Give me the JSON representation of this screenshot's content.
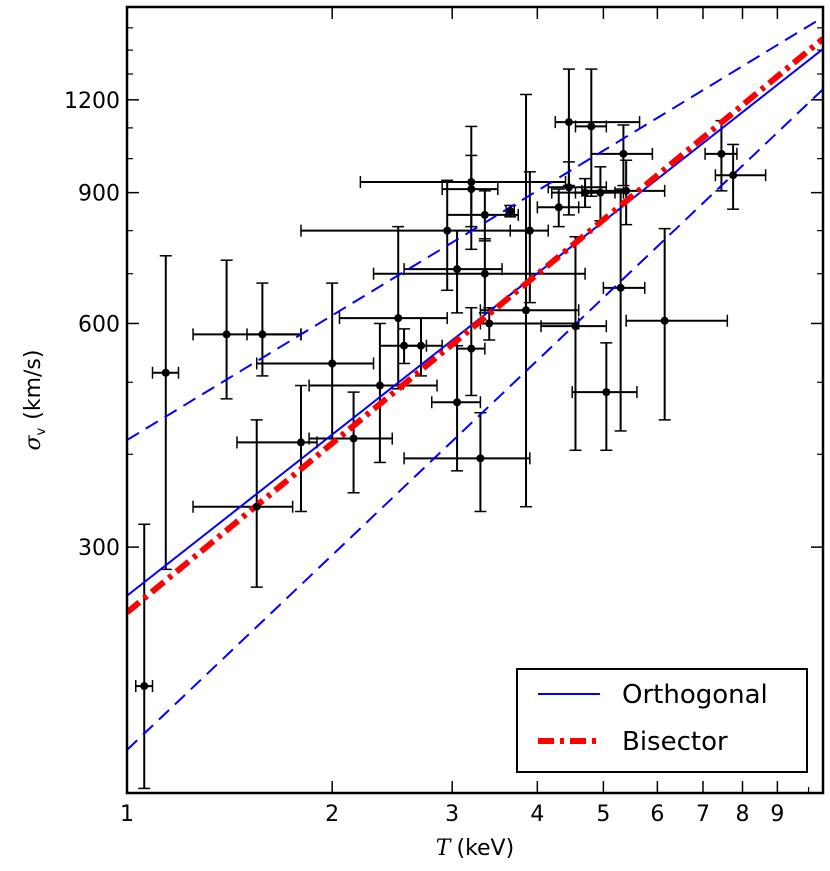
{
  "chart_data": {
    "type": "scatter",
    "title": "",
    "xlabel": {
      "symbol": "T",
      "unit": "(keV)"
    },
    "ylabel": {
      "symbol": "σ",
      "subscript": "v",
      "unit": "(km/s)"
    },
    "x_scale": "log",
    "y_scale": "log",
    "xlim": [
      1,
      10.5
    ],
    "ylim": [
      140,
      1600
    ],
    "x_ticks": [
      1,
      2,
      3,
      4,
      5,
      6,
      7,
      8,
      9
    ],
    "x_tick_labels": [
      "1",
      "2",
      "3",
      "4",
      "5",
      "6",
      "7",
      "8",
      "9"
    ],
    "y_ticks": [
      300,
      600,
      900,
      1200
    ],
    "y_tick_labels": [
      "300",
      "600",
      "900",
      "1200"
    ],
    "y_minor_ticks": [
      400,
      500,
      700,
      800,
      1000,
      1100,
      1300,
      1400,
      1500
    ],
    "points": [
      {
        "x": 1.06,
        "y": 195,
        "xerr": [
          0.03,
          0.03
        ],
        "yerr": [
          53,
          127
        ]
      },
      {
        "x": 1.14,
        "y": 515,
        "xerr": [
          0.05,
          0.05
        ],
        "yerr": [
          235,
          225
        ]
      },
      {
        "x": 1.4,
        "y": 580,
        "xerr": [
          0.15,
          0.4
        ],
        "yerr": [
          105,
          150
        ]
      },
      {
        "x": 1.58,
        "y": 580,
        "xerr": [
          0.08,
          0.22
        ],
        "yerr": [
          70,
          100
        ]
      },
      {
        "x": 1.55,
        "y": 340,
        "xerr": [
          0.3,
          0.2
        ],
        "yerr": [
          75,
          105
        ]
      },
      {
        "x": 1.8,
        "y": 415,
        "xerr": [
          0.35,
          0.1
        ],
        "yerr": [
          80,
          80
        ]
      },
      {
        "x": 2.0,
        "y": 530,
        "xerr": [
          0.45,
          0.3
        ],
        "yerr": [
          110,
          150
        ]
      },
      {
        "x": 2.15,
        "y": 420,
        "xerr": [
          0.3,
          0.3
        ],
        "yerr": [
          65,
          65
        ]
      },
      {
        "x": 2.35,
        "y": 495,
        "xerr": [
          0.5,
          0.5
        ],
        "yerr": [
          105,
          105
        ]
      },
      {
        "x": 2.5,
        "y": 610,
        "xerr": [
          0.45,
          0.45
        ],
        "yerr": [
          120,
          200
        ]
      },
      {
        "x": 2.55,
        "y": 560,
        "xerr": [
          0.2,
          0.2
        ],
        "yerr": [
          30,
          30
        ]
      },
      {
        "x": 2.7,
        "y": 560,
        "xerr": [
          0.15,
          0.2
        ],
        "yerr": [
          50,
          50
        ]
      },
      {
        "x": 2.95,
        "y": 800,
        "xerr": [
          1.15,
          0.95
        ],
        "yerr": [
          135,
          135
        ]
      },
      {
        "x": 3.05,
        "y": 470,
        "xerr": [
          0.25,
          0.25
        ],
        "yerr": [
          90,
          90
        ]
      },
      {
        "x": 3.05,
        "y": 710,
        "xerr": [
          0.5,
          0.5
        ],
        "yerr": [
          90,
          90
        ]
      },
      {
        "x": 3.2,
        "y": 930,
        "xerr": [
          1.0,
          1.2
        ],
        "yerr": [
          175,
          175
        ]
      },
      {
        "x": 3.2,
        "y": 910,
        "xerr": [
          0.3,
          0.3
        ],
        "yerr": [
          100,
          100
        ]
      },
      {
        "x": 3.2,
        "y": 555,
        "xerr": [
          0.15,
          0.15
        ],
        "yerr": [
          75,
          75
        ]
      },
      {
        "x": 3.3,
        "y": 395,
        "xerr": [
          0.75,
          0.6
        ],
        "yerr": [
          60,
          60
        ]
      },
      {
        "x": 3.35,
        "y": 840,
        "xerr": [
          0.4,
          0.4
        ],
        "yerr": [
          65,
          65
        ]
      },
      {
        "x": 3.35,
        "y": 700,
        "xerr": [
          1.05,
          1.35
        ],
        "yerr": [
          80,
          80
        ]
      },
      {
        "x": 3.4,
        "y": 600,
        "xerr": [
          0.1,
          1.2
        ],
        "yerr": [
          30,
          30
        ]
      },
      {
        "x": 3.65,
        "y": 850,
        "xerr": [
          0.05,
          0.05
        ],
        "yerr": [
          15,
          15
        ]
      },
      {
        "x": 3.85,
        "y": 625,
        "xerr": [
          0.55,
          0.75
        ],
        "yerr": [
          285,
          595
        ]
      },
      {
        "x": 3.9,
        "y": 800,
        "xerr": [
          0.25,
          0.25
        ],
        "yerr": [
          160,
          160
        ]
      },
      {
        "x": 4.3,
        "y": 860,
        "xerr": [
          0.3,
          0.3
        ],
        "yerr": [
          50,
          50
        ]
      },
      {
        "x": 4.45,
        "y": 1120,
        "xerr": [
          0.2,
          1.2
        ],
        "yerr": [
          200,
          200
        ]
      },
      {
        "x": 4.45,
        "y": 915,
        "xerr": [
          0.3,
          0.6
        ],
        "yerr": [
          75,
          75
        ]
      },
      {
        "x": 4.55,
        "y": 595,
        "xerr": [
          0.5,
          0.5
        ],
        "yerr": [
          190,
          190
        ]
      },
      {
        "x": 4.7,
        "y": 900,
        "xerr": [
          0.5,
          0.5
        ],
        "yerr": [
          40,
          40
        ]
      },
      {
        "x": 4.8,
        "y": 1105,
        "xerr": [
          0.25,
          0.25
        ],
        "yerr": [
          215,
          215
        ]
      },
      {
        "x": 4.95,
        "y": 900,
        "xerr": [
          0.4,
          0.4
        ],
        "yerr": [
          75,
          75
        ]
      },
      {
        "x": 5.05,
        "y": 485,
        "xerr": [
          0.55,
          0.55
        ],
        "yerr": [
          80,
          80
        ]
      },
      {
        "x": 5.3,
        "y": 670,
        "xerr": [
          0.3,
          0.45
        ],
        "yerr": [
          240,
          240
        ]
      },
      {
        "x": 5.35,
        "y": 1015,
        "xerr": [
          0.55,
          0.55
        ],
        "yerr": [
          95,
          95
        ]
      },
      {
        "x": 5.4,
        "y": 905,
        "xerr": [
          0.75,
          0.75
        ],
        "yerr": [
          90,
          90
        ]
      },
      {
        "x": 6.15,
        "y": 605,
        "xerr": [
          0.75,
          1.45
        ],
        "yerr": [
          160,
          200
        ]
      },
      {
        "x": 7.45,
        "y": 1015,
        "xerr": [
          0.4,
          0.4
        ],
        "yerr": [
          110,
          110
        ]
      },
      {
        "x": 7.75,
        "y": 950,
        "xerr": [
          0.45,
          0.9
        ],
        "yerr": [
          95,
          95
        ]
      }
    ],
    "series": [
      {
        "name": "Orthogonal",
        "color": "#0000ff",
        "style": "solid",
        "x": [
          1,
          10.5
        ],
        "y": [
          258,
          1405
        ]
      },
      {
        "name": "Orthogonal upper bound",
        "color": "#0000ff",
        "style": "dashed",
        "x": [
          1,
          10.5
        ],
        "y": [
          418,
          1550
        ]
      },
      {
        "name": "Orthogonal lower bound",
        "color": "#0000ff",
        "style": "dashed",
        "x": [
          1,
          10.5
        ],
        "y": [
          160,
          1240
        ]
      },
      {
        "name": "Bisector",
        "color": "#ff0000",
        "style": "dash-dot",
        "x": [
          1,
          10.5
        ],
        "y": [
          245,
          1450
        ]
      }
    ],
    "legend": {
      "position": "bottom-right",
      "entries": [
        {
          "label": "Orthogonal",
          "color": "#0000ff",
          "style": "solid"
        },
        {
          "label": "Bisector",
          "color": "#ff0000",
          "style": "dash-dot"
        }
      ]
    },
    "point_color": "#000000",
    "grid": false
  }
}
